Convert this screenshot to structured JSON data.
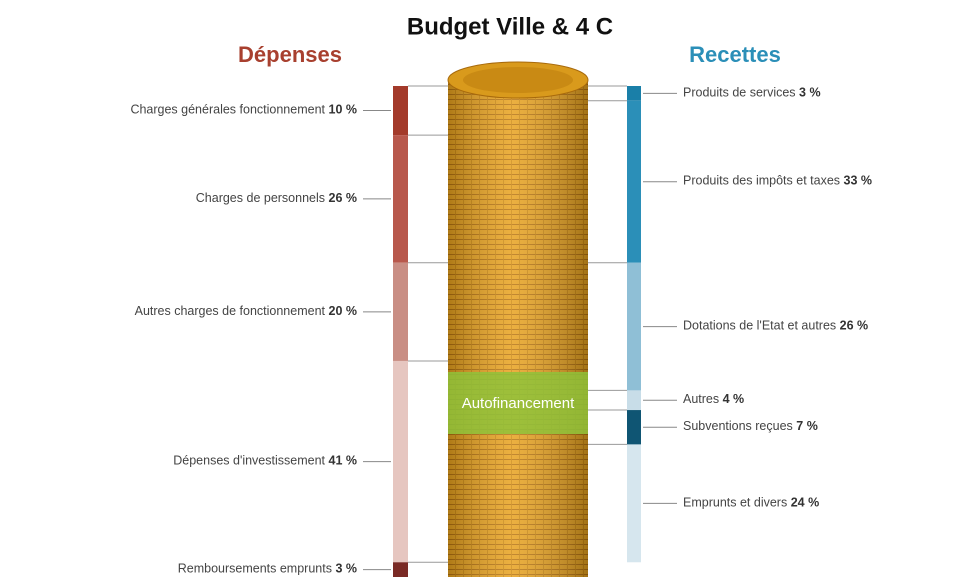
{
  "title": "Budget Ville & 4 C",
  "annotation": "Autofinancement",
  "chart_data": [
    {
      "type": "bar",
      "title": "Dépenses",
      "color": "#a8402f",
      "categories": [
        "Charges générales fonctionnement",
        "Charges de personnels",
        "Autres charges de fonctionnement",
        "Dépenses d'investissement",
        "Remboursements emprunts"
      ],
      "values": [
        10,
        26,
        20,
        41,
        3
      ],
      "value_labels": [
        "10 %",
        "26 %",
        "20 %",
        "41 %",
        "3 %"
      ],
      "colors": [
        "#a33a2a",
        "#b8584c",
        "#c98e84",
        "#e6c6c0",
        "#7a2a25"
      ]
    },
    {
      "type": "bar",
      "title": "Recettes",
      "color": "#2b8fb8",
      "categories": [
        "Produits de services",
        "Produits des impôts et taxes",
        "Dotations de l'Etat et autres",
        "Autres",
        "Subventions reçues",
        "Emprunts et divers"
      ],
      "values": [
        3,
        33,
        26,
        4,
        7,
        24
      ],
      "value_labels": [
        "3 %",
        "33 %",
        "26 %",
        "4 %",
        "7 %",
        "24 %"
      ],
      "colors": [
        "#1a7fa8",
        "#2b8fb8",
        "#8fbfd6",
        "#c8dde8",
        "#0f5573",
        "#d6e6ee"
      ]
    }
  ]
}
